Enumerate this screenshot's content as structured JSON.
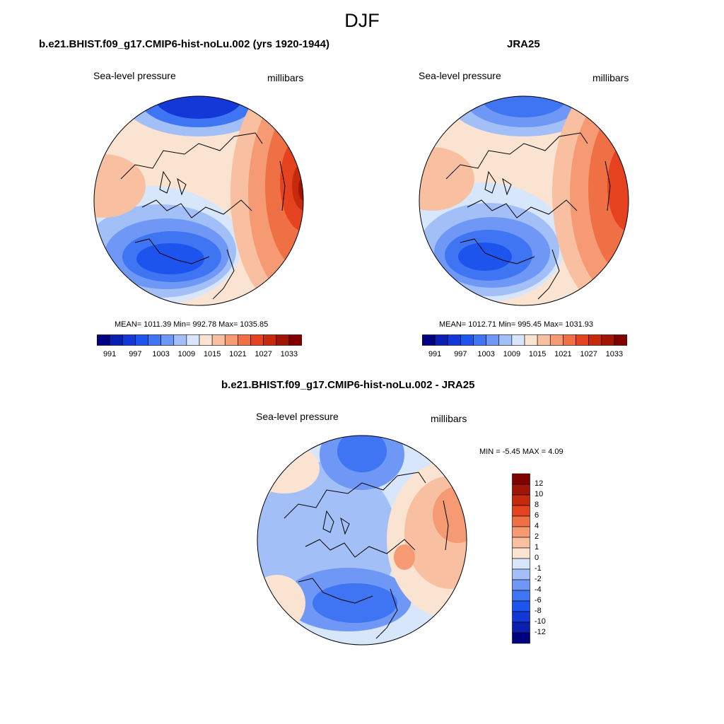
{
  "figure": {
    "season": "DJF"
  },
  "panels": {
    "model": {
      "title": "b.e21.BHIST.f09_g17.CMIP6-hist-noLu.002 (yrs 1920-1944)",
      "variable": "Sea-level pressure",
      "units": "millibars",
      "stats": "MEAN= 1011.39  Min= 992.78  Max= 1035.85"
    },
    "obs": {
      "title": "JRA25",
      "variable": "Sea-level pressure",
      "units": "millibars",
      "stats": "MEAN= 1012.71  Min= 995.45  Max= 1031.93"
    },
    "diff": {
      "title": "b.e21.BHIST.f09_g17.CMIP6-hist-noLu.002 - JRA25",
      "variable": "Sea-level pressure",
      "units": "millibars",
      "stats": "MIN =  -5.45 MAX =   4.09"
    }
  },
  "colorbars": {
    "absolute": {
      "labels": [
        "991",
        "997",
        "1003",
        "1009",
        "1015",
        "1021",
        "1027",
        "1033"
      ],
      "colors": [
        "#000080",
        "#0a1fb0",
        "#1438d8",
        "#1e54ee",
        "#3f74f2",
        "#6f97f5",
        "#a3bff8",
        "#d8e6fb",
        "#fbe3d2",
        "#f8c0a0",
        "#f59a72",
        "#f07045",
        "#e5431f",
        "#c52a0d",
        "#a01505",
        "#800000"
      ]
    },
    "difference": {
      "labels": [
        "12",
        "10",
        "8",
        "6",
        "4",
        "2",
        "1",
        "0",
        "-1",
        "-2",
        "-4",
        "-6",
        "-8",
        "-10",
        "-12"
      ],
      "colors": [
        "#800000",
        "#a01505",
        "#c52a0d",
        "#e5431f",
        "#f07045",
        "#f59a72",
        "#f8c0a0",
        "#fbe3d2",
        "#d8e6fb",
        "#a3bff8",
        "#6f97f5",
        "#3f74f2",
        "#1e54ee",
        "#1438d8",
        "#0a1fb0",
        "#000080"
      ]
    }
  }
}
